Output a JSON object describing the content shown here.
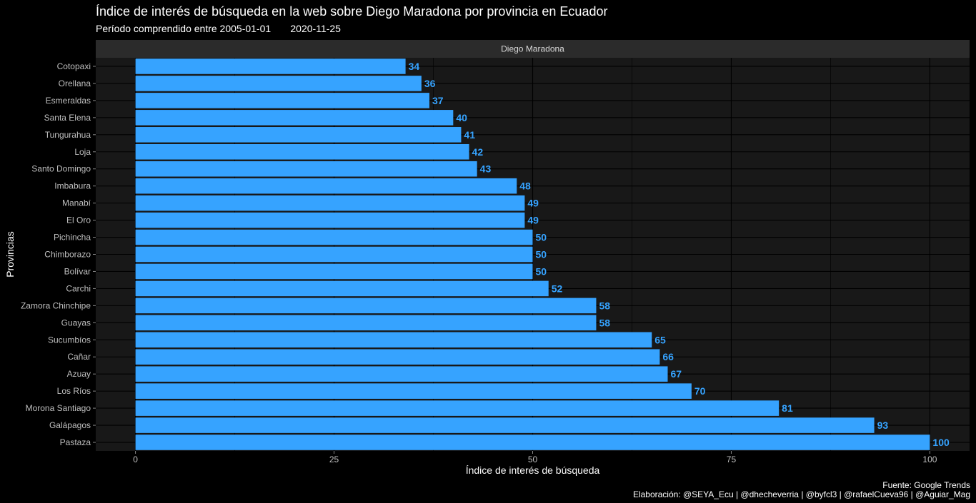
{
  "title": "Índice de interés de búsqueda en la web sobre Diego Maradona por provincia en Ecuador",
  "subtitle": "Período comprendido entre 2005-01-01       2020-11-25",
  "caption_source": "Fuente: Google Trends",
  "caption_credits": "Elaboración:  @SEYA_Ecu | @dhecheverria | @byfcl3 | @rafaelCueva96 | @Aguiar_Mag",
  "colors": {
    "background": "#000000",
    "panel": "#181818",
    "strip": "#2b2b2b",
    "grid": "#000000",
    "bar": "#36a3ff",
    "label": "#36a3ff",
    "axis_text": "#bfbfbf"
  },
  "chart_data": {
    "type": "bar",
    "orientation": "horizontal",
    "facet_label": "Diego Maradona",
    "xlabel": "Índice de interés de búsqueda",
    "ylabel": "Provincias",
    "xlim": [
      -5,
      105
    ],
    "xticks": [
      0,
      25,
      50,
      75,
      100
    ],
    "grid": true,
    "categories": [
      "Cotopaxi",
      "Orellana",
      "Esmeraldas",
      "Santa Elena",
      "Tungurahua",
      "Loja",
      "Santo Domingo",
      "Imbabura",
      "Manabí",
      "El Oro",
      "Pichincha",
      "Chimborazo",
      "Bolívar",
      "Carchi",
      "Zamora Chinchipe",
      "Guayas",
      "Sucumbíos",
      "Cañar",
      "Azuay",
      "Los Ríos",
      "Morona Santiago",
      "Galápagos",
      "Pastaza"
    ],
    "values": [
      34,
      36,
      37,
      40,
      41,
      42,
      43,
      48,
      49,
      49,
      50,
      50,
      50,
      52,
      58,
      58,
      65,
      66,
      67,
      70,
      81,
      93,
      100
    ]
  }
}
